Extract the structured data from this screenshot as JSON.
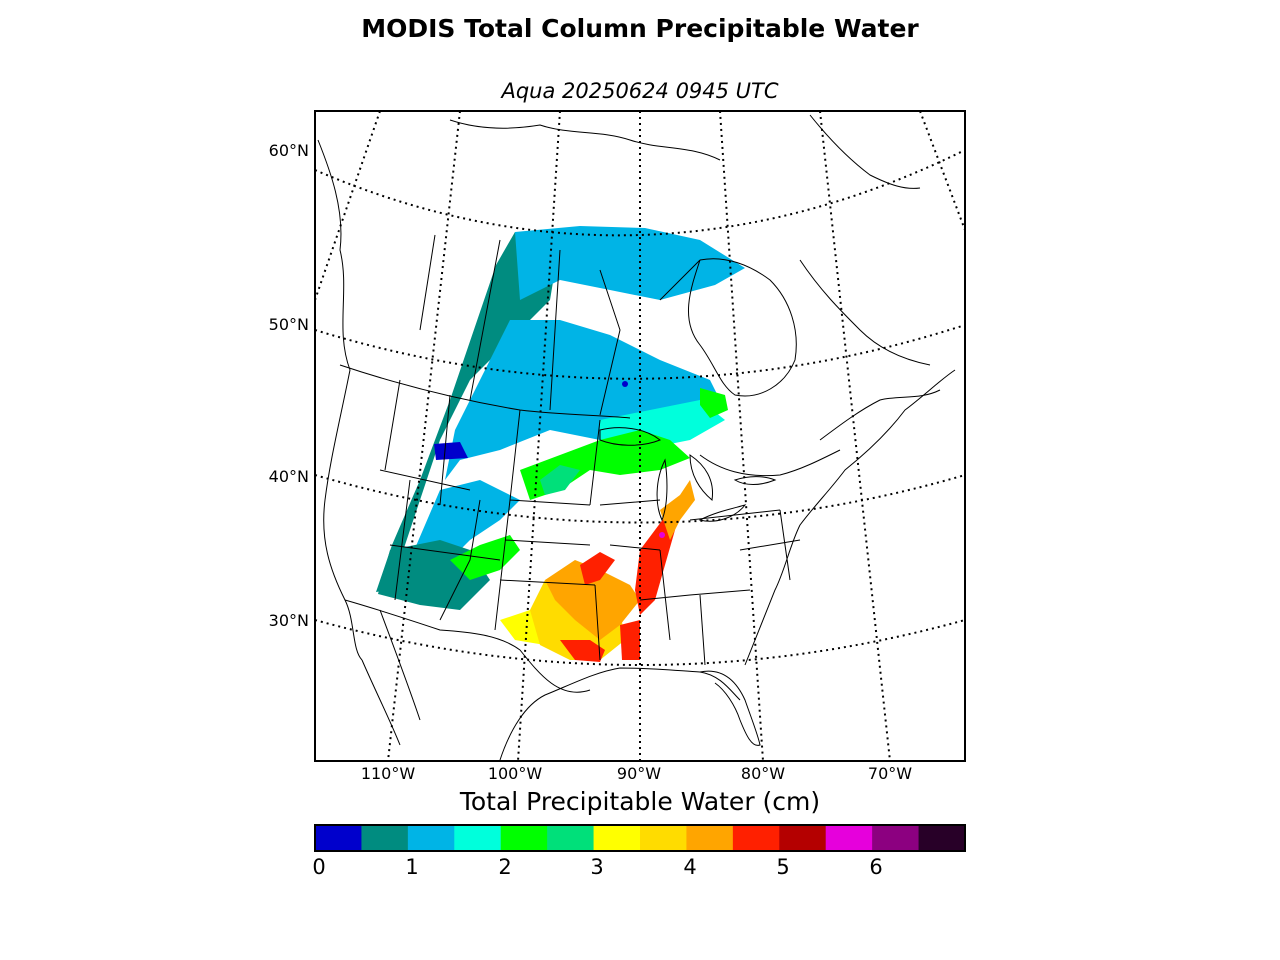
{
  "title": "MODIS Total Column Precipitable Water",
  "subtitle": "Aqua 20250624 0945 UTC",
  "lat_labels": [
    {
      "label": "60°N",
      "value": 60
    },
    {
      "label": "50°N",
      "value": 50
    },
    {
      "label": "40°N",
      "value": 40
    },
    {
      "label": "30°N",
      "value": 30
    }
  ],
  "lon_labels": [
    {
      "label": "110°W",
      "value": -110
    },
    {
      "label": "100°W",
      "value": -100
    },
    {
      "label": "90°W",
      "value": -90
    },
    {
      "label": "80°W",
      "value": -80
    },
    {
      "label": "70°W",
      "value": -70
    }
  ],
  "colorbar": {
    "label": "Total Precipitable Water (cm)",
    "range": [
      0,
      7
    ],
    "ticks": [
      "0",
      "1",
      "2",
      "3",
      "4",
      "5",
      "6"
    ],
    "colors": [
      "#0000cc",
      "#008c80",
      "#00b4e6",
      "#00ffdc",
      "#00ff00",
      "#00e07a",
      "#ffff00",
      "#ffdc00",
      "#ffa500",
      "#ff2000",
      "#b40000",
      "#e600dc",
      "#8c0080",
      "#280028"
    ]
  }
}
